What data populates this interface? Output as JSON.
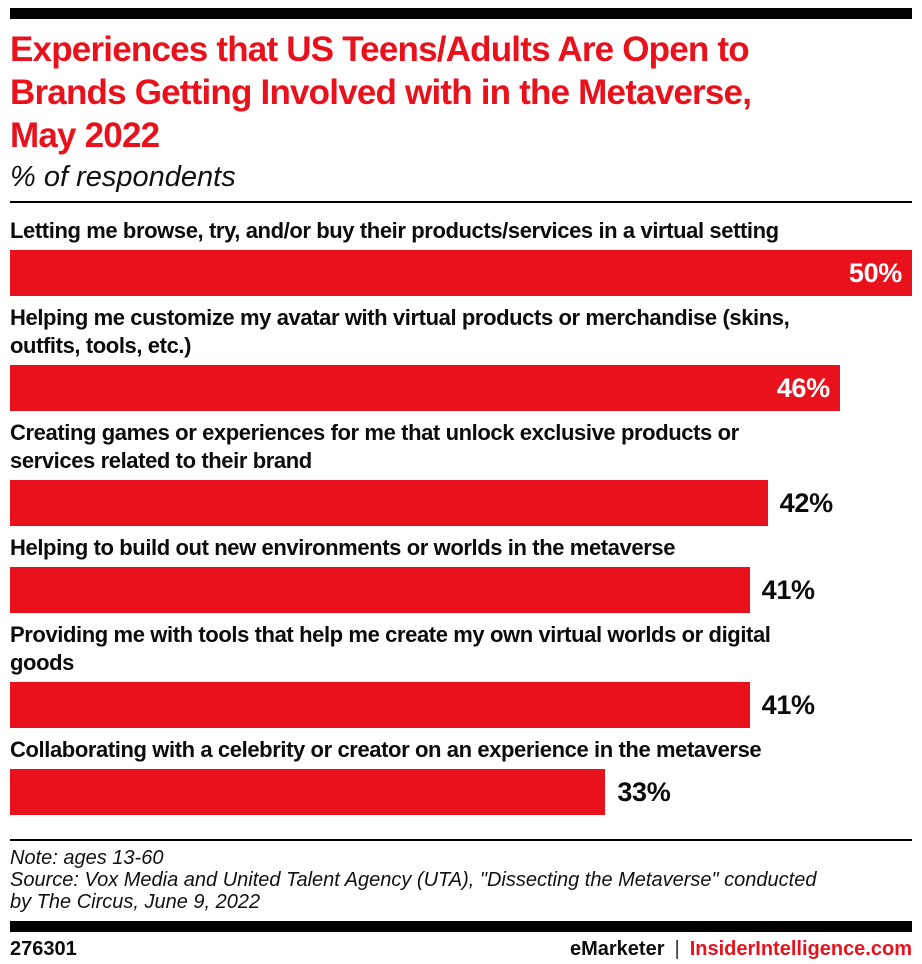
{
  "colors": {
    "accent_red": "#e8111c",
    "text_black": "#0d0d0d",
    "bar_background": "#ffffff"
  },
  "header": {
    "title_lines": [
      "Experiences that US Teens/Adults Are Open to",
      "Brands Getting Involved with in the Metaverse,",
      "May 2022"
    ],
    "subtitle": "% of respondents"
  },
  "chart_data": {
    "type": "bar",
    "orientation": "horizontal",
    "title": "Experiences that US Teens/Adults Are Open to Brands Getting Involved with in the Metaverse, May 2022",
    "subtitle": "% of respondents",
    "unit": "%",
    "xlim": [
      0,
      50
    ],
    "grid": false,
    "legend": false,
    "bar_color": "#e8111c",
    "categories": [
      "Letting me browse, try, and/or buy their products/services in a virtual setting",
      "Helping me customize my avatar with virtual products or merchandise (skins, outfits, tools, etc.)",
      "Creating games or experiences for me that unlock exclusive products or services related to their brand",
      "Helping to build out new environments or worlds in the metaverse",
      "Providing me with tools that help me create my own virtual worlds or digital goods",
      "Collaborating with a celebrity or creator on an experience in the metaverse"
    ],
    "label_lines": [
      [
        "Letting me browse, try, and/or buy their products/services in a virtual setting"
      ],
      [
        "Helping me customize my avatar with virtual products or merchandise (skins,",
        "outfits, tools, etc.)"
      ],
      [
        "Creating games or experiences for me that unlock exclusive products or",
        "services related to their brand"
      ],
      [
        "Helping to build out new environments or worlds in the metaverse"
      ],
      [
        "Providing me with tools that help me create my own virtual worlds or digital",
        "goods"
      ],
      [
        "Collaborating with a celebrity or creator on an experience in the metaverse"
      ]
    ],
    "values": [
      50,
      46,
      42,
      41,
      41,
      33
    ],
    "value_labels": [
      "50%",
      "46%",
      "42%",
      "41%",
      "41%",
      "33%"
    ],
    "value_label_inside": [
      true,
      true,
      false,
      false,
      false,
      false
    ]
  },
  "footer": {
    "note": "Note: ages 13-60",
    "source_lines": [
      "Source: Vox Media and United Talent Agency (UTA), \"Dissecting the Metaverse\" conducted",
      "by The Circus, June 9, 2022"
    ],
    "chart_id": "276301",
    "brand_left": "eMarketer",
    "brand_divider": "|",
    "brand_right": "InsiderIntelligence.com"
  }
}
